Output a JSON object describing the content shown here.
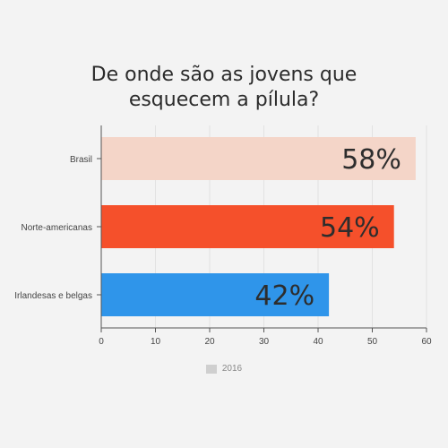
{
  "title_lines": [
    "De onde são as jovens que",
    "esquecem a pílula?"
  ],
  "legend": {
    "label": "2016",
    "color": "#cfcfcf"
  },
  "chart_data": {
    "type": "bar",
    "orientation": "horizontal",
    "title": "De onde são as jovens que esquecem a pílula?",
    "categories": [
      "Brasil",
      "Norte-americanas",
      "Irlandesas e belgas"
    ],
    "values": [
      58,
      54,
      42
    ],
    "data_labels": [
      "58%",
      "54%",
      "42%"
    ],
    "bar_colors": [
      "#f4d5c8",
      "#f5502b",
      "#2f95ea"
    ],
    "series": [
      {
        "name": "2016",
        "values": [
          58,
          54,
          42
        ]
      }
    ],
    "xlim": [
      0,
      60
    ],
    "xticks": [
      0,
      10,
      20,
      30,
      40,
      50,
      60
    ],
    "grid": true,
    "legend_position": "bottom"
  }
}
